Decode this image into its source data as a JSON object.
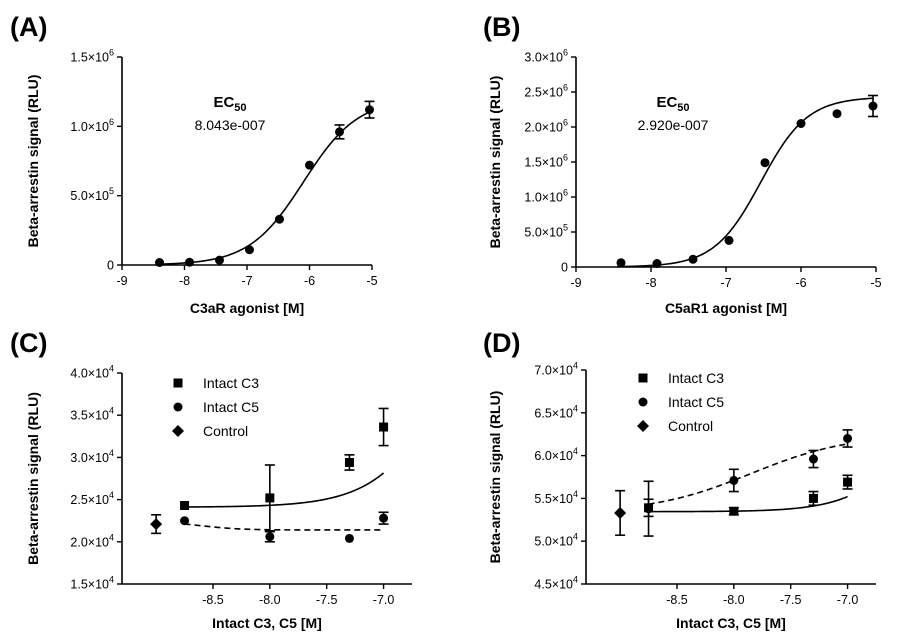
{
  "chart_data": [
    {
      "type": "scatter",
      "panel_label": "(A)",
      "xlabel": "C3aR agonist [M]",
      "ylabel": "Beta-arrestin signal (RLU)",
      "xlim": [
        -9,
        -5
      ],
      "ylim": [
        0,
        1500000
      ],
      "x_ticks": [
        -9,
        -8,
        -7,
        -6,
        -5
      ],
      "x_tick_labels": [
        "-9",
        "-8",
        "-7",
        "-6",
        "-5"
      ],
      "y_ticks": [
        0,
        500000,
        1000000,
        1500000
      ],
      "y_tick_labels": [
        {
          "mant": "0",
          "exp": ""
        },
        {
          "mant": "5.0×10",
          "exp": "5"
        },
        {
          "mant": "1.0×10",
          "exp": "6"
        },
        {
          "mant": "1.5×10",
          "exp": "6"
        }
      ],
      "annotation": {
        "title_main": "EC",
        "title_sub": "50",
        "value": "8.043e-007"
      },
      "series": [
        {
          "marker": "circle",
          "fit": {
            "bottom": 0,
            "top": 1200000,
            "logEC50": -6.095,
            "hill": 1.0,
            "dashed": false
          },
          "x": [
            -8.4,
            -7.92,
            -7.44,
            -6.96,
            -6.48,
            -6.0,
            -5.52,
            -5.04
          ],
          "y": [
            18000,
            20000,
            35000,
            110000,
            330000,
            720000,
            960000,
            1120000
          ],
          "err": [
            0,
            0,
            0,
            0,
            0,
            0,
            50000,
            60000
          ]
        }
      ]
    },
    {
      "type": "scatter",
      "panel_label": "(B)",
      "xlabel": "C5aR1 agonist [M]",
      "ylabel": "Beta-arrestin signal (RLU)",
      "xlim": [
        -9,
        -5
      ],
      "ylim": [
        0,
        3000000
      ],
      "x_ticks": [
        -9,
        -8,
        -7,
        -6,
        -5
      ],
      "x_tick_labels": [
        "-9",
        "-8",
        "-7",
        "-6",
        "-5"
      ],
      "y_ticks": [
        0,
        500000,
        1000000,
        1500000,
        2000000,
        2500000,
        3000000
      ],
      "y_tick_labels": [
        {
          "mant": "0",
          "exp": ""
        },
        {
          "mant": "5.0×10",
          "exp": "5"
        },
        {
          "mant": "1.0×10",
          "exp": "6"
        },
        {
          "mant": "1.5×10",
          "exp": "6"
        },
        {
          "mant": "2.0×10",
          "exp": "6"
        },
        {
          "mant": "2.5×10",
          "exp": "6"
        },
        {
          "mant": "3.0×10",
          "exp": "6"
        }
      ],
      "annotation": {
        "title_main": "EC",
        "title_sub": "50",
        "value": "2.920e-007"
      },
      "series": [
        {
          "marker": "circle",
          "fit": {
            "bottom": 0,
            "top": 2430000,
            "logEC50": -6.535,
            "hill": 1.4,
            "dashed": false
          },
          "x": [
            -8.4,
            -7.92,
            -7.44,
            -6.96,
            -6.48,
            -6.0,
            -5.52,
            -5.04
          ],
          "y": [
            60000,
            50000,
            110000,
            380000,
            1490000,
            2050000,
            2190000,
            2300000
          ],
          "err": [
            0,
            0,
            0,
            0,
            0,
            0,
            0,
            150000
          ]
        }
      ]
    },
    {
      "type": "scatter",
      "panel_label": "(C)",
      "xlabel": "Intact C3, C5 [M]",
      "ylabel": "Beta-arrestin signal (RLU)",
      "xlim": [
        -9.3,
        -6.75
      ],
      "ylim": [
        15000,
        40000
      ],
      "x_ticks": [
        -8.5,
        -8.0,
        -7.5,
        -7.0
      ],
      "x_tick_labels": [
        "-8.5",
        "-8.0",
        "-7.5",
        "-7.0"
      ],
      "y_ticks": [
        15000,
        20000,
        25000,
        30000,
        35000,
        40000
      ],
      "y_tick_labels": [
        {
          "mant": "1.5×10",
          "exp": "4"
        },
        {
          "mant": "2.0×10",
          "exp": "4"
        },
        {
          "mant": "2.5×10",
          "exp": "4"
        },
        {
          "mant": "3.0×10",
          "exp": "4"
        },
        {
          "mant": "3.5×10",
          "exp": "4"
        },
        {
          "mant": "4.0×10",
          "exp": "4"
        }
      ],
      "legend": {
        "position": "top-left",
        "entries": [
          "Intact C3",
          "Intact C5",
          "Control"
        ]
      },
      "series": [
        {
          "name": "Intact C3",
          "marker": "square",
          "fit": {
            "bottom": 24100,
            "top": 70000,
            "logEC50": -6.22,
            "hill": 1.3,
            "dashed": false,
            "x_range": [
              -8.75,
              -7.0
            ]
          },
          "x": [
            -8.75,
            -8.0,
            -7.3,
            -7.0
          ],
          "y": [
            24300,
            25200,
            29400,
            33600
          ],
          "err": [
            0,
            3900,
            900,
            2200
          ]
        },
        {
          "name": "Intact C5",
          "marker": "circle",
          "fit": {
            "bottom": 21400,
            "top": 22400,
            "logEC50": -8.6,
            "hill": -2.5,
            "dashed": true,
            "x_range": [
              -8.75,
              -7.0
            ]
          },
          "x": [
            -8.75,
            -8.0,
            -7.3,
            -7.0
          ],
          "y": [
            22500,
            20600,
            20400,
            22800
          ],
          "err": [
            0,
            600,
            0,
            700
          ]
        },
        {
          "name": "Control",
          "marker": "diamond",
          "x": [
            -9.0
          ],
          "y": [
            22100
          ],
          "err": [
            1100
          ]
        }
      ]
    },
    {
      "type": "scatter",
      "panel_label": "(D)",
      "xlabel": "Intact C3, C5 [M]",
      "ylabel": "Beta-arrestin signal (RLU)",
      "xlim": [
        -9.3,
        -6.75
      ],
      "ylim": [
        45000,
        70000
      ],
      "x_ticks": [
        -8.5,
        -8.0,
        -7.5,
        -7.0
      ],
      "x_tick_labels": [
        "-8.5",
        "-8.0",
        "-7.5",
        "-7.0"
      ],
      "y_ticks": [
        45000,
        50000,
        55000,
        60000,
        65000,
        70000
      ],
      "y_tick_labels": [
        {
          "mant": "4.5×10",
          "exp": "4"
        },
        {
          "mant": "5.0×10",
          "exp": "4"
        },
        {
          "mant": "5.5×10",
          "exp": "4"
        },
        {
          "mant": "6.0×10",
          "exp": "4"
        },
        {
          "mant": "6.5×10",
          "exp": "4"
        },
        {
          "mant": "7.0×10",
          "exp": "4"
        }
      ],
      "legend": {
        "position": "top-left",
        "entries": [
          "Intact C3",
          "Intact C5",
          "Control"
        ]
      },
      "series": [
        {
          "name": "Intact C3",
          "marker": "square",
          "fit": {
            "bottom": 53450,
            "top": 75000,
            "logEC50": -6.3,
            "hill": 1.5,
            "dashed": false,
            "x_range": [
              -8.75,
              -7.0
            ]
          },
          "x": [
            -8.75,
            -8.0,
            -7.3,
            -7.0
          ],
          "y": [
            53900,
            53500,
            55000,
            56900
          ],
          "err": [
            1000,
            400,
            800,
            800
          ]
        },
        {
          "name": "Intact C5",
          "marker": "circle",
          "fit": {
            "bottom": 53300,
            "top": 62500,
            "logEC50": -7.85,
            "hill": 1.0,
            "dashed": true,
            "x_range": [
              -8.75,
              -7.0
            ]
          },
          "x": [
            -8.75,
            -8.0,
            -7.3,
            -7.0
          ],
          "y": [
            53800,
            57100,
            59600,
            62000
          ],
          "err": [
            3200,
            1300,
            1000,
            1000
          ]
        },
        {
          "name": "Control",
          "marker": "diamond",
          "x": [
            -9.0
          ],
          "y": [
            53300
          ],
          "err": [
            2600
          ]
        }
      ]
    }
  ]
}
